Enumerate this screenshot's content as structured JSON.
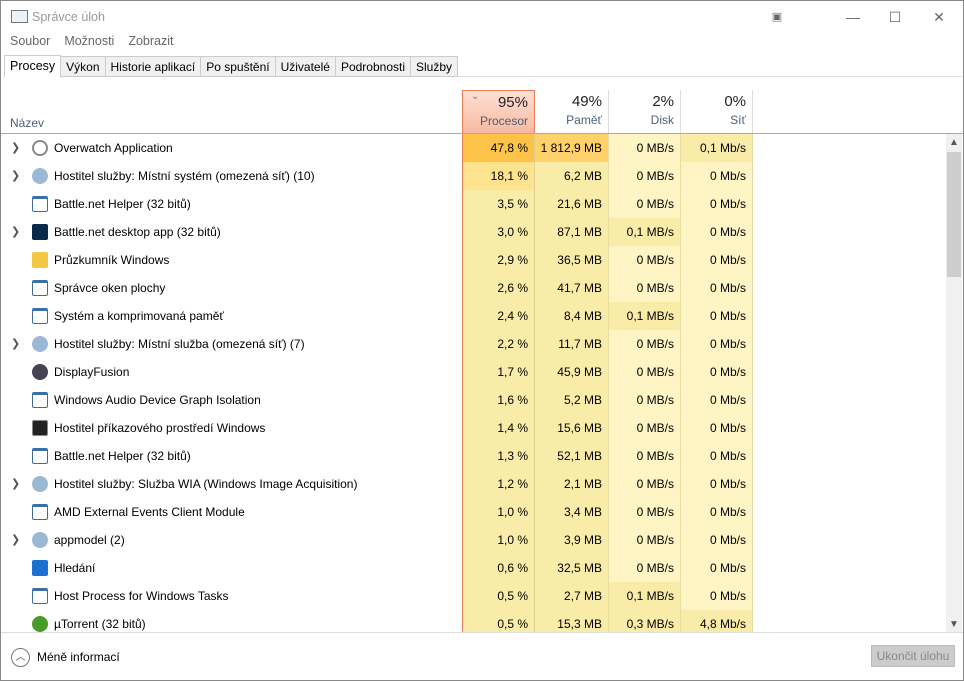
{
  "window": {
    "title": "Správce úloh"
  },
  "menu": [
    "Soubor",
    "Možnosti",
    "Zobrazit"
  ],
  "tabs": [
    "Procesy",
    "Výkon",
    "Historie aplikací",
    "Po spuštění",
    "Uživatelé",
    "Podrobnosti",
    "Služby"
  ],
  "columns": {
    "name": "Název",
    "cpu": {
      "pct": "95%",
      "label": "Procesor"
    },
    "mem": {
      "pct": "49%",
      "label": "Paměť"
    },
    "disk": {
      "pct": "2%",
      "label": "Disk"
    },
    "net": {
      "pct": "0%",
      "label": "Síť"
    }
  },
  "colors": {
    "heat_high": "#fcc348",
    "heat_mid": "#fde38e",
    "heat_low": "#f9eba8",
    "heat_min": "#fff4c4",
    "sorted_border": "#e8805a"
  },
  "processes": [
    {
      "name": "Overwatch Application",
      "expandable": true,
      "icon": "overwatch-icon",
      "cpu": "47,8 %",
      "mem": "1 812,9 MB",
      "disk": "0 MB/s",
      "net": "0,1 Mb/s"
    },
    {
      "name": "Hostitel služby: Místní systém (omezená síť) (10)",
      "expandable": true,
      "icon": "gear-icon",
      "cpu": "18,1 %",
      "mem": "6,2 MB",
      "disk": "0 MB/s",
      "net": "0 Mb/s"
    },
    {
      "name": "Battle.net Helper (32 bitů)",
      "expandable": false,
      "icon": "app-window-icon",
      "cpu": "3,5 %",
      "mem": "21,6 MB",
      "disk": "0 MB/s",
      "net": "0 Mb/s"
    },
    {
      "name": "Battle.net desktop app (32 bitů)",
      "expandable": true,
      "icon": "battlenet-icon",
      "cpu": "3,0 %",
      "mem": "87,1 MB",
      "disk": "0,1 MB/s",
      "net": "0 Mb/s"
    },
    {
      "name": "Průzkumník Windows",
      "expandable": false,
      "icon": "folder-icon",
      "cpu": "2,9 %",
      "mem": "36,5 MB",
      "disk": "0 MB/s",
      "net": "0 Mb/s"
    },
    {
      "name": "Správce oken plochy",
      "expandable": false,
      "icon": "app-window-icon",
      "cpu": "2,6 %",
      "mem": "41,7 MB",
      "disk": "0 MB/s",
      "net": "0 Mb/s"
    },
    {
      "name": "Systém a komprimovaná paměť",
      "expandable": false,
      "icon": "app-window-icon",
      "cpu": "2,4 %",
      "mem": "8,4 MB",
      "disk": "0,1 MB/s",
      "net": "0 Mb/s"
    },
    {
      "name": "Hostitel služby: Místní služba (omezená síť) (7)",
      "expandable": true,
      "icon": "gear-icon",
      "cpu": "2,2 %",
      "mem": "11,7 MB",
      "disk": "0 MB/s",
      "net": "0 Mb/s"
    },
    {
      "name": "DisplayFusion",
      "expandable": false,
      "icon": "displayfusion-icon",
      "cpu": "1,7 %",
      "mem": "45,9 MB",
      "disk": "0 MB/s",
      "net": "0 Mb/s"
    },
    {
      "name": "Windows Audio Device Graph Isolation",
      "expandable": false,
      "icon": "app-window-icon",
      "cpu": "1,6 %",
      "mem": "5,2 MB",
      "disk": "0 MB/s",
      "net": "0 Mb/s"
    },
    {
      "name": "Hostitel příkazového prostředí Windows",
      "expandable": false,
      "icon": "console-icon",
      "cpu": "1,4 %",
      "mem": "15,6 MB",
      "disk": "0 MB/s",
      "net": "0 Mb/s"
    },
    {
      "name": "Battle.net Helper (32 bitů)",
      "expandable": false,
      "icon": "app-window-icon",
      "cpu": "1,3 %",
      "mem": "52,1 MB",
      "disk": "0 MB/s",
      "net": "0 Mb/s"
    },
    {
      "name": "Hostitel služby: Služba WIA (Windows Image Acquisition)",
      "expandable": true,
      "icon": "gear-icon",
      "cpu": "1,2 %",
      "mem": "2,1 MB",
      "disk": "0 MB/s",
      "net": "0 Mb/s"
    },
    {
      "name": "AMD External Events Client Module",
      "expandable": false,
      "icon": "app-window-icon",
      "cpu": "1,0 %",
      "mem": "3,4 MB",
      "disk": "0 MB/s",
      "net": "0 Mb/s"
    },
    {
      "name": "appmodel (2)",
      "expandable": true,
      "icon": "gear-icon",
      "cpu": "1,0 %",
      "mem": "3,9 MB",
      "disk": "0 MB/s",
      "net": "0 Mb/s"
    },
    {
      "name": "Hledání",
      "expandable": false,
      "icon": "search-icon",
      "cpu": "0,6 %",
      "mem": "32,5 MB",
      "disk": "0 MB/s",
      "net": "0 Mb/s"
    },
    {
      "name": "Host Process for Windows Tasks",
      "expandable": false,
      "icon": "app-window-icon",
      "cpu": "0,5 %",
      "mem": "2,7 MB",
      "disk": "0,1 MB/s",
      "net": "0 Mb/s"
    },
    {
      "name": "µTorrent (32 bitů)",
      "expandable": false,
      "icon": "utorrent-icon",
      "cpu": "0,5 %",
      "mem": "15,3 MB",
      "disk": "0,3 MB/s",
      "net": "4,8 Mb/s"
    }
  ],
  "footer": {
    "less_info": "Méně informací",
    "end_task": "Ukončit úlohu"
  }
}
